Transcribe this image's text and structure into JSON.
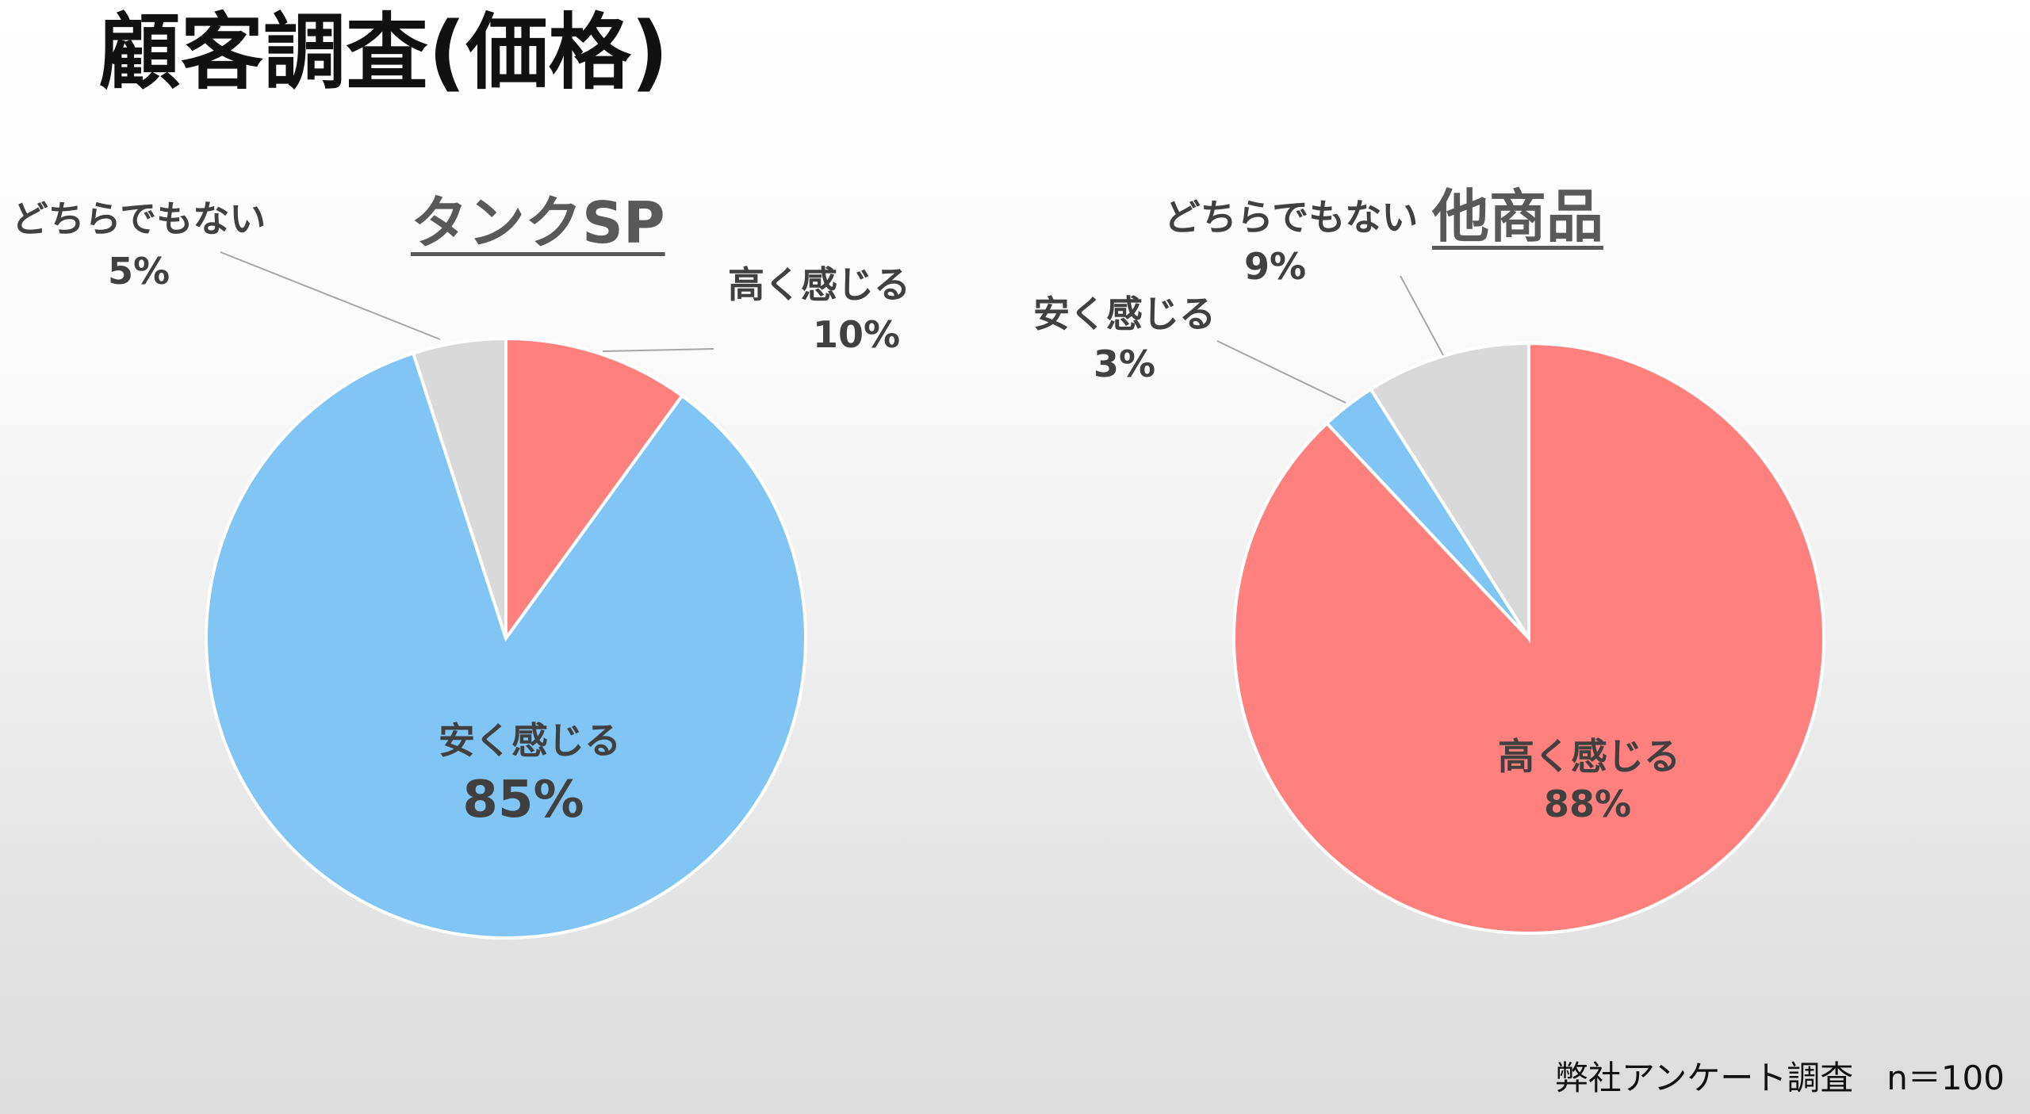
{
  "title": "顧客調査(価格)",
  "footnote": "弊社アンケート調査　n＝100",
  "chart_data": [
    {
      "type": "pie",
      "title": "タンクSP",
      "start": "12 o'clock, clockwise",
      "slices": [
        {
          "label": "高く感じる",
          "value": 10,
          "display": "10%",
          "color": "#FF807C"
        },
        {
          "label": "安く感じる",
          "value": 85,
          "display": "85%",
          "color": "#80C5F3"
        },
        {
          "label": "どちらでもない",
          "value": 5,
          "display": "5%",
          "color": "#D9D9D9"
        }
      ]
    },
    {
      "type": "pie",
      "title": "他商品",
      "start": "12 o'clock, clockwise",
      "slices": [
        {
          "label": "高く感じる",
          "value": 88,
          "display": "88%",
          "color": "#FF807C"
        },
        {
          "label": "安く感じる",
          "value": 3,
          "display": "3%",
          "color": "#80C5F3"
        },
        {
          "label": "どちらでもない",
          "value": 9,
          "display": "9%",
          "color": "#D9D9D9"
        }
      ]
    }
  ]
}
